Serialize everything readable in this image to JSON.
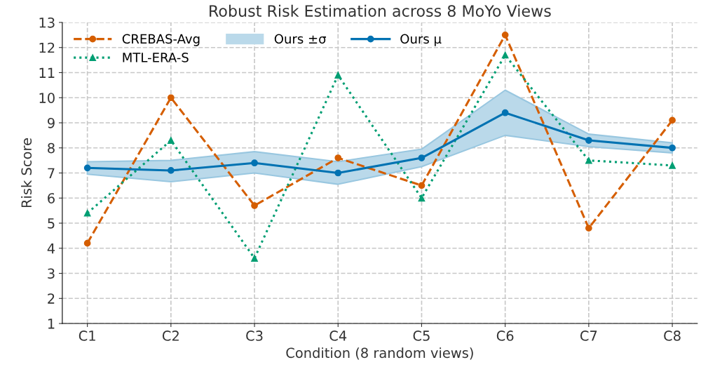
{
  "chart_data": {
    "type": "line",
    "title": "Robust Risk Estimation across 8 MoYo Views",
    "xlabel": "Condition (8 random views)",
    "ylabel": "Risk Score",
    "categories": [
      "C1",
      "C2",
      "C3",
      "C4",
      "C5",
      "C6",
      "C7",
      "C8"
    ],
    "series": [
      {
        "name": "CREBAS-Avg",
        "color": "#d55e00",
        "marker": "circle",
        "line_style": "dashed",
        "values": [
          4.2,
          10.0,
          5.7,
          7.6,
          6.5,
          12.5,
          4.8,
          9.1
        ]
      },
      {
        "name": "MTL-ERA-S",
        "color": "#009e73",
        "marker": "triangle",
        "line_style": "dotted",
        "values": [
          5.4,
          8.3,
          3.6,
          10.9,
          6.0,
          11.7,
          7.5,
          7.3
        ]
      },
      {
        "name": "Ours μ",
        "color": "#0072b2",
        "marker": "circle",
        "line_style": "solid",
        "values": [
          7.2,
          7.1,
          7.4,
          7.0,
          7.6,
          9.4,
          8.3,
          8.0
        ],
        "lower": [
          6.95,
          6.65,
          7.0,
          6.55,
          7.25,
          8.5,
          8.05,
          7.8
        ],
        "upper": [
          7.45,
          7.5,
          7.85,
          7.45,
          7.95,
          10.3,
          8.55,
          8.2
        ]
      }
    ],
    "annotations": [
      "Ours ±σ"
    ],
    "ylim": [
      1,
      13
    ],
    "yticks": [
      1,
      2,
      3,
      4,
      5,
      6,
      7,
      8,
      9,
      10,
      11,
      12,
      13
    ],
    "grid": true,
    "legend": "top left"
  }
}
